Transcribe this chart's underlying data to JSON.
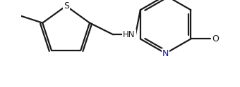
{
  "bg_color": "#ffffff",
  "line_color": "#1a1a1a",
  "bond_lw": 1.6,
  "font_size": 8.5,
  "figsize": [
    3.4,
    1.24
  ],
  "dpi": 100,
  "xlim": [
    0.0,
    6.8
  ],
  "ylim": [
    -0.5,
    2.5
  ],
  "S_color": "#1a1a1a",
  "N_color": "#1a1880",
  "O_color": "#1a1a1a",
  "NH_color": "#1a1a1a"
}
